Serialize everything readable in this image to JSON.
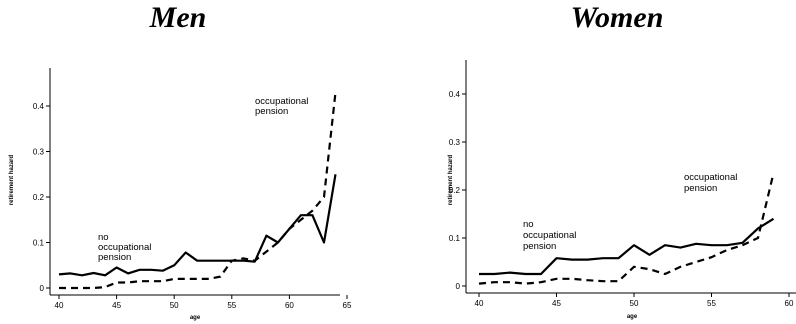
{
  "chart_data": [
    {
      "type": "line",
      "title": "Men",
      "xlabel": "age",
      "ylabel": "retirement hazard",
      "xlim": [
        40,
        65
      ],
      "ylim": [
        0,
        0.45
      ],
      "xticks": [
        "40",
        "45",
        "50",
        "55",
        "60",
        "65"
      ],
      "yticks": [
        "0",
        "0.1",
        "0.2",
        "0.3",
        "0.4"
      ],
      "annotations": [
        {
          "lines": [
            "no",
            "occupational",
            "pension"
          ]
        },
        {
          "lines": [
            "occupational",
            "pension"
          ]
        }
      ],
      "series": [
        {
          "style": "solid",
          "x": [
            40,
            41,
            42,
            43,
            44,
            45,
            46,
            47,
            48,
            49,
            50,
            51,
            52,
            53,
            54,
            55,
            56,
            57,
            58,
            59,
            60,
            61,
            62,
            63,
            64
          ],
          "y": [
            0.03,
            0.032,
            0.028,
            0.033,
            0.028,
            0.045,
            0.032,
            0.04,
            0.04,
            0.038,
            0.05,
            0.078,
            0.06,
            0.06,
            0.06,
            0.06,
            0.06,
            0.058,
            0.115,
            0.1,
            0.13,
            0.16,
            0.16,
            0.1,
            0.25
          ]
        },
        {
          "style": "dashed",
          "x": [
            40,
            41,
            42,
            43,
            44,
            45,
            46,
            47,
            48,
            49,
            50,
            51,
            52,
            53,
            54,
            55,
            56,
            57,
            58,
            59,
            60,
            61,
            62,
            63,
            64
          ],
          "y": [
            0.0,
            0.0,
            0.0,
            0.0,
            0.002,
            0.012,
            0.012,
            0.015,
            0.015,
            0.015,
            0.02,
            0.02,
            0.02,
            0.02,
            0.025,
            0.06,
            0.065,
            0.06,
            0.08,
            0.1,
            0.13,
            0.15,
            0.17,
            0.2,
            0.43
          ]
        }
      ]
    },
    {
      "type": "line",
      "title": "Women",
      "xlabel": "age",
      "ylabel": "retirement hazard",
      "xlim": [
        40,
        60
      ],
      "ylim": [
        0,
        0.45
      ],
      "xticks": [
        "40",
        "45",
        "50",
        "55",
        "60"
      ],
      "yticks": [
        "0",
        "0.1",
        "0.2",
        "0.3",
        "0.4"
      ],
      "annotations": [
        {
          "lines": [
            "no",
            "occupational",
            "pension"
          ]
        },
        {
          "lines": [
            "occupational",
            "pension"
          ]
        }
      ],
      "series": [
        {
          "style": "solid",
          "x": [
            40,
            41,
            42,
            43,
            44,
            45,
            46,
            47,
            48,
            49,
            50,
            51,
            52,
            53,
            54,
            55,
            56,
            57,
            58,
            59
          ],
          "y": [
            0.025,
            0.025,
            0.028,
            0.025,
            0.025,
            0.058,
            0.055,
            0.055,
            0.058,
            0.058,
            0.085,
            0.065,
            0.085,
            0.08,
            0.088,
            0.085,
            0.085,
            0.09,
            0.12,
            0.14
          ]
        },
        {
          "style": "dashed",
          "x": [
            40,
            41,
            42,
            43,
            44,
            45,
            46,
            47,
            48,
            49,
            50,
            51,
            52,
            53,
            54,
            55,
            56,
            57,
            58,
            59
          ],
          "y": [
            0.005,
            0.008,
            0.008,
            0.005,
            0.008,
            0.015,
            0.015,
            0.012,
            0.01,
            0.01,
            0.04,
            0.035,
            0.025,
            0.04,
            0.05,
            0.06,
            0.075,
            0.085,
            0.1,
            0.235
          ]
        }
      ]
    }
  ]
}
